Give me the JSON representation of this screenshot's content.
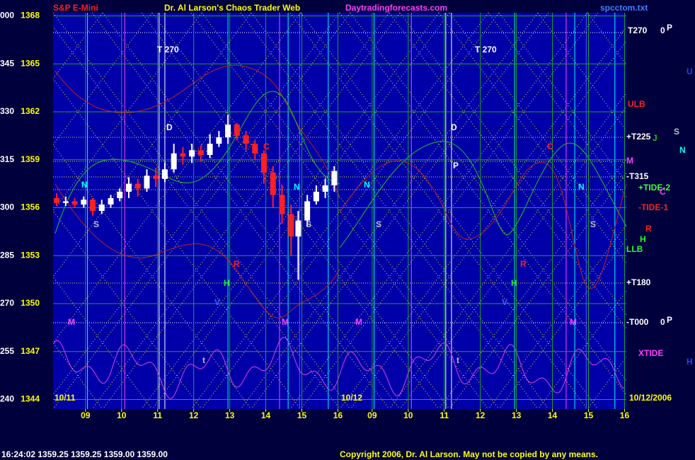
{
  "header": {
    "instrument": "S&P E-Mini",
    "title": "Dr. Al Larson's Chaos Trader Web",
    "site": "Daytradingforecasts.com",
    "file": "spcctom.txt"
  },
  "footer": {
    "quote": "16:24:02 1359.25 1359.25 1359.00 1359.00",
    "copyright": "Copyright 2006, Dr. Al Larson. May not be copied by any means."
  },
  "chart_data": [
    {
      "type": "candlestick",
      "label": "10/11",
      "xlim": [
        8.1,
        16.05
      ],
      "xticks": [
        {
          "value": 9,
          "label": "09"
        },
        10,
        11,
        12,
        13,
        14,
        15,
        16
      ],
      "ylim": [
        1343.4,
        1368.2
      ],
      "yticks": [
        1344,
        1347,
        1350,
        1353,
        1356,
        1359,
        1362,
        1365,
        1368
      ],
      "angle_labels": [
        "240",
        "255",
        "270",
        "285",
        "300",
        "315",
        "330",
        "345",
        "000"
      ],
      "up_color": "#ffffff",
      "down_color": "#ff2020",
      "grid": true,
      "x": [
        8.2,
        8.45,
        8.7,
        8.95,
        9.2,
        9.45,
        9.7,
        9.95,
        10.2,
        10.45,
        10.7,
        10.95,
        11.2,
        11.45,
        11.7,
        11.95,
        12.2,
        12.45,
        12.7,
        12.95,
        13.2,
        13.45,
        13.7,
        13.95,
        14.2,
        14.45,
        14.7,
        14.9,
        15.15,
        15.4,
        15.65,
        15.9
      ],
      "open": [
        1356.6,
        1356.3,
        1356.4,
        1356.2,
        1356.5,
        1355.8,
        1356.2,
        1356.6,
        1357.0,
        1357.5,
        1357.2,
        1358.0,
        1357.8,
        1358.4,
        1359.4,
        1359.2,
        1359.6,
        1359.3,
        1360.0,
        1360.4,
        1361.2,
        1360.5,
        1360.0,
        1359.4,
        1358.2,
        1356.8,
        1355.6,
        1354.2,
        1355.2,
        1356.4,
        1357.0,
        1357.4
      ],
      "close": [
        1356.3,
        1356.4,
        1356.2,
        1356.5,
        1355.8,
        1356.2,
        1356.6,
        1357.0,
        1357.5,
        1357.2,
        1358.0,
        1357.8,
        1358.4,
        1359.4,
        1359.2,
        1359.6,
        1359.3,
        1360.0,
        1360.4,
        1361.2,
        1360.5,
        1360.0,
        1359.4,
        1358.2,
        1356.8,
        1355.6,
        1354.2,
        1355.2,
        1356.4,
        1357.0,
        1357.4,
        1358.3
      ],
      "low": [
        1356.1,
        1356.1,
        1356.0,
        1356.0,
        1355.5,
        1355.6,
        1356.0,
        1356.4,
        1356.6,
        1356.7,
        1357.0,
        1357.3,
        1357.6,
        1358.2,
        1358.7,
        1358.8,
        1358.9,
        1359.1,
        1359.8,
        1360.0,
        1360.2,
        1359.6,
        1359.0,
        1357.5,
        1356.0,
        1355.0,
        1353.0,
        1351.5,
        1354.8,
        1356.2,
        1356.6,
        1357.0
      ],
      "high": [
        1356.9,
        1356.7,
        1356.6,
        1356.7,
        1356.6,
        1356.5,
        1356.8,
        1357.2,
        1357.9,
        1357.8,
        1358.4,
        1358.5,
        1358.8,
        1360.0,
        1359.8,
        1360.0,
        1359.9,
        1360.6,
        1360.8,
        1361.8,
        1361.3,
        1360.8,
        1360.2,
        1359.6,
        1358.6,
        1357.4,
        1356.2,
        1355.8,
        1356.8,
        1357.4,
        1357.8,
        1358.6
      ]
    },
    {
      "type": "candlestick",
      "label": "10/12",
      "date_label": "10/12/2006",
      "xlim": [
        8.1,
        16.05
      ],
      "xticks": [
        {
          "value": 9,
          "label": "09"
        },
        10,
        11,
        12,
        13,
        14,
        15,
        16
      ],
      "ylim": [
        1343.4,
        1368.2
      ],
      "grid": true,
      "x": [],
      "open": [],
      "close": [],
      "low": [],
      "high": []
    }
  ],
  "right_labels": [
    "T270",
    "0",
    "P",
    "U",
    "ULB",
    "+T225",
    "J",
    "S",
    "N",
    "M",
    "-T315",
    "+TIDE-2",
    "C",
    "-TIDE-1",
    "R",
    "H",
    "LLB",
    "+T180",
    "-T000",
    "0",
    "P",
    "XTIDE",
    "H"
  ],
  "annotations": [
    "T 270",
    "D",
    "N",
    "S",
    "R",
    "H",
    "V",
    "M",
    "t",
    "C",
    "N",
    "S",
    "M",
    "T 270",
    "D",
    "P",
    "N",
    "S",
    "N",
    "S",
    "R",
    "H",
    "V",
    "M",
    "M",
    "t",
    "C"
  ]
}
